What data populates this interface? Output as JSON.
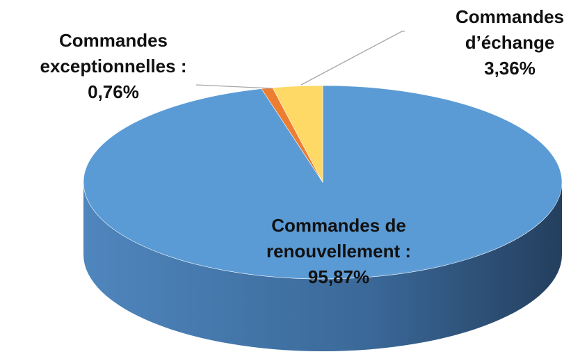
{
  "chart_data": {
    "type": "pie",
    "categories": [
      "Commandes de renouvellement :",
      "Commandes exceptionnelles :",
      "Commandes d’échange"
    ],
    "values": [
      95.87,
      0.76,
      3.36
    ],
    "value_labels": [
      "95,87%",
      "0,76%",
      "3,36%"
    ],
    "colors": [
      "#5b9bd5",
      "#ed7d31",
      "#ffd966"
    ]
  }
}
